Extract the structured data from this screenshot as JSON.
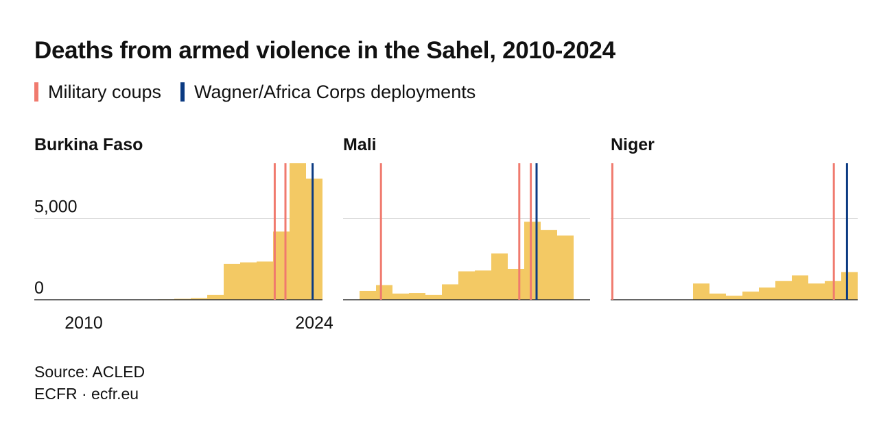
{
  "title": "Deaths from armed violence in the Sahel, 2010-2024",
  "legend": [
    {
      "label": "Military coups",
      "color": "#f07a6e"
    },
    {
      "label": "Wagner/Africa Corps deployments",
      "color": "#0b3a82"
    }
  ],
  "footer": {
    "source": "Source: ACLED",
    "credit": "ECFR · ecfr.eu"
  },
  "colors": {
    "bar": "#f3c964",
    "coup": "#f07a6e",
    "wagner": "#0b3a82",
    "grid": "#dddddd",
    "axis": "#333333"
  },
  "chart_data": [
    {
      "type": "bar",
      "title": "Burkina Faso",
      "categories": [
        "2010",
        "2011",
        "2012",
        "2013",
        "2014",
        "2015",
        "2016",
        "2017",
        "2018",
        "2019",
        "2020",
        "2021",
        "2022",
        "2023",
        "2024"
      ],
      "values": [
        10,
        10,
        10,
        15,
        20,
        30,
        60,
        100,
        300,
        2200,
        2300,
        2350,
        4200,
        8400,
        7450
      ],
      "ylim": [
        0,
        8400
      ],
      "yticks": [
        {
          "value": 0,
          "label": "0"
        },
        {
          "value": 5000,
          "label": "5,000"
        }
      ],
      "xticks": [
        {
          "value": "2010",
          "label": "2010"
        },
        {
          "value": "2024",
          "label": "2024"
        }
      ],
      "coups": [
        2022.1,
        2022.75
      ],
      "wagner": [
        2024.4
      ]
    },
    {
      "type": "bar",
      "title": "Mali",
      "categories": [
        "2010",
        "2011",
        "2012",
        "2013",
        "2014",
        "2015",
        "2016",
        "2017",
        "2018",
        "2019",
        "2020",
        "2021",
        "2022",
        "2023",
        "2024"
      ],
      "values": [
        15,
        550,
        900,
        380,
        420,
        300,
        950,
        1750,
        1800,
        2850,
        1900,
        4800,
        4300,
        3950,
        10
      ],
      "ylim": [
        0,
        8400
      ],
      "yticks": [
        {
          "value": 0,
          "label": ""
        },
        {
          "value": 5000,
          "label": ""
        }
      ],
      "xticks": [],
      "coups": [
        2012.3,
        2020.7,
        2021.4
      ],
      "wagner": [
        2021.75
      ]
    },
    {
      "type": "bar",
      "title": "Niger",
      "categories": [
        "2010",
        "2011",
        "2012",
        "2013",
        "2014",
        "2015",
        "2016",
        "2017",
        "2018",
        "2019",
        "2020",
        "2021",
        "2022",
        "2023",
        "2024"
      ],
      "values": [
        10,
        10,
        10,
        10,
        10,
        1000,
        380,
        250,
        500,
        750,
        1150,
        1500,
        1000,
        1150,
        1700
      ],
      "ylim": [
        0,
        8400
      ],
      "yticks": [
        {
          "value": 0,
          "label": ""
        },
        {
          "value": 5000,
          "label": ""
        }
      ],
      "xticks": [],
      "coups": [
        2010.1,
        2023.55
      ],
      "wagner": [
        2024.35
      ]
    }
  ]
}
